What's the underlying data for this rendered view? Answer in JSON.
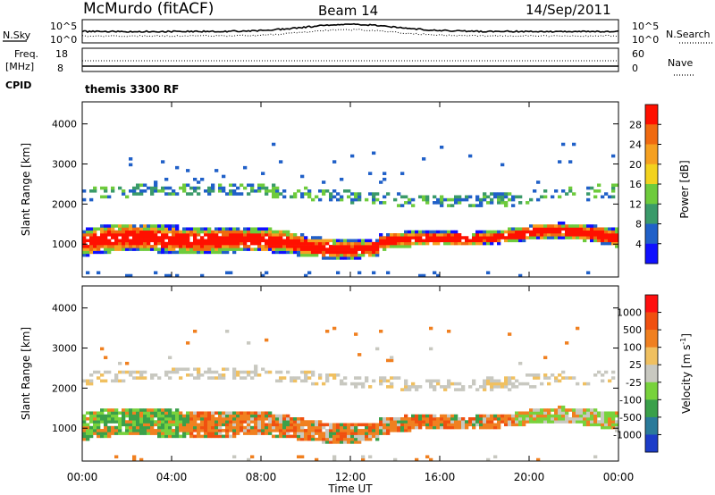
{
  "header": {
    "station": "McMurdo (fitACF)",
    "beam": "Beam 14",
    "date": "14/Sep/2011"
  },
  "noise_panel": {
    "left_label": "N.Sky",
    "right_label": "N.Search",
    "left_ticks": [
      "10^5",
      "10^0"
    ],
    "right_ticks": [
      "10^5",
      "10^0"
    ]
  },
  "freq_panel": {
    "left_label_1": "Freq.",
    "left_label_2": "[MHz]",
    "right_label": "Nave",
    "left_ticks": [
      "18",
      "8"
    ],
    "right_ticks": [
      "60",
      "0"
    ]
  },
  "cpid": {
    "label": "CPID",
    "value": "themis 3300 RF"
  },
  "colors": {
    "power_scale": [
      "#1010ff",
      "#2060c8",
      "#3a9a6a",
      "#6ecb3c",
      "#f2d21e",
      "#f5a020",
      "#f06a10",
      "#ff1000"
    ],
    "velocity_scale": [
      "#1c3cc8",
      "#2a7a9a",
      "#3aa04a",
      "#78d23c",
      "#c8c8c0",
      "#f0c060",
      "#f08020",
      "#f05010",
      "#ff1010"
    ]
  },
  "chart_data": [
    {
      "type": "heatmap",
      "name": "power",
      "ylabel": "Slant Range [km]",
      "yticks": [
        "4000",
        "3000",
        "2000",
        "1000"
      ],
      "colorbar_label": "Power [dB]",
      "colorbar_ticks": [
        "28",
        "24",
        "20",
        "16",
        "12",
        "8",
        "4"
      ],
      "ylim": [
        180,
        4550
      ]
    },
    {
      "type": "heatmap",
      "name": "velocity",
      "ylabel": "Slant Range [km]",
      "yticks": [
        "4000",
        "3000",
        "2000",
        "1000"
      ],
      "colorbar_label": "Velocity [m s",
      "colorbar_label_sup": "-1",
      "colorbar_label_end": "]",
      "colorbar_ticks": [
        "1000",
        "500",
        "100",
        "25",
        "-25",
        "-100",
        "-500",
        "-1000"
      ],
      "ylim": [
        180,
        4550
      ]
    }
  ],
  "time_axis": {
    "xlabel": "Time UT",
    "ticks": [
      "00:00",
      "04:00",
      "08:00",
      "12:00",
      "16:00",
      "20:00",
      "00:00"
    ]
  }
}
